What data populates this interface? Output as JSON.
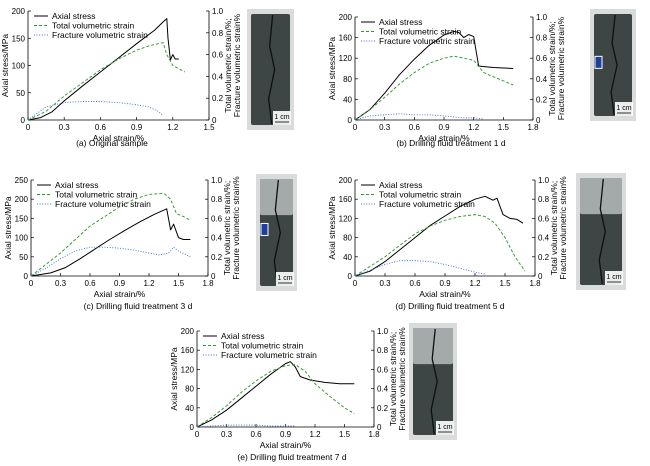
{
  "labels": {
    "y_left": "Axial stress/MPa",
    "y_right": "Total volumetric strain/%;",
    "y_right2": "Fracture volumetric strain%",
    "x": "Axial strain/%",
    "scale_bar": "1 cm"
  },
  "colors": {
    "axial": "#000000",
    "total": "#2e9b2e",
    "fracture": "#3f74d8",
    "rock": "#3d4645",
    "rock_light": "#a4aaa9",
    "crack": "#0c1010",
    "tag_blue": "#1f3fa0"
  },
  "chart_data": [
    {
      "type": "line",
      "caption": "(a) Original sample",
      "legend": [
        "Axial stress",
        "Total volumetric strain",
        "Fracture volumetric strain"
      ],
      "xlabel": "Axial strain/%",
      "ylabel": "Axial stress/MPa",
      "y2label": "Total volumetric strain/%; Fracture volumetric strain%",
      "xlim": [
        0,
        1.5
      ],
      "xticks": [
        0,
        0.3,
        0.6,
        0.9,
        1.2,
        1.5
      ],
      "ylim": [
        0,
        200
      ],
      "yticks": [
        0,
        50,
        100,
        150,
        200
      ],
      "y2lim": [
        0,
        1.0
      ],
      "y2ticks": [
        0,
        0.2,
        0.4,
        0.6,
        0.8,
        1.0
      ],
      "series": [
        {
          "name": "Axial stress",
          "axis": "left",
          "style": "solid",
          "x": [
            0,
            0.1,
            0.2,
            0.3,
            0.45,
            0.6,
            0.75,
            0.9,
            1.05,
            1.12,
            1.15,
            1.16,
            1.18,
            1.2,
            1.22,
            1.25
          ],
          "y": [
            0,
            4,
            15,
            35,
            62,
            88,
            114,
            140,
            165,
            180,
            186,
            150,
            110,
            120,
            112,
            112
          ]
        },
        {
          "name": "Total volumetric strain",
          "axis": "right",
          "style": "dash",
          "x": [
            0,
            0.15,
            0.3,
            0.45,
            0.6,
            0.75,
            0.9,
            1.0,
            1.08,
            1.12,
            1.15,
            1.2,
            1.3
          ],
          "y": [
            0,
            0.08,
            0.22,
            0.34,
            0.46,
            0.56,
            0.64,
            0.68,
            0.7,
            0.71,
            0.6,
            0.5,
            0.44
          ]
        },
        {
          "name": "Fracture volumetric strain",
          "axis": "right",
          "style": "dot",
          "x": [
            0,
            0.15,
            0.3,
            0.45,
            0.6,
            0.75,
            0.9,
            1.0,
            1.08,
            1.12
          ],
          "y": [
            0,
            0.12,
            0.16,
            0.17,
            0.17,
            0.16,
            0.14,
            0.12,
            0.08,
            0.04
          ]
        }
      ],
      "photo": {
        "top_band": false,
        "blue_tag": false
      }
    },
    {
      "type": "line",
      "caption": "(b) Drilling fluid treatment 1 d",
      "legend": [
        "Axial stress",
        "Total volumetric strain",
        "Fracture volumetric strain"
      ],
      "xlabel": "Axial strain/%",
      "ylabel": "Axial stress/MPa",
      "y2label": "Total volumetric strain/%; Fracture volumetric strain%",
      "xlim": [
        0,
        1.8
      ],
      "xticks": [
        0,
        0.3,
        0.6,
        0.9,
        1.2,
        1.5,
        1.8
      ],
      "ylim": [
        0,
        200
      ],
      "yticks": [
        0,
        40,
        80,
        120,
        160,
        200
      ],
      "y2lim": [
        0,
        1.0
      ],
      "y2ticks": [
        0,
        0.2,
        0.4,
        0.6,
        0.8,
        1.0
      ],
      "series": [
        {
          "name": "Axial stress",
          "axis": "left",
          "style": "solid",
          "x": [
            0,
            0.15,
            0.3,
            0.45,
            0.6,
            0.75,
            0.9,
            1.0,
            1.05,
            1.1,
            1.15,
            1.2,
            1.25,
            1.28,
            1.4,
            1.6
          ],
          "y": [
            0,
            20,
            52,
            88,
            118,
            145,
            165,
            172,
            170,
            160,
            166,
            162,
            105,
            104,
            102,
            100
          ]
        },
        {
          "name": "Total volumetric strain",
          "axis": "right",
          "style": "dash",
          "x": [
            0,
            0.15,
            0.3,
            0.45,
            0.6,
            0.75,
            0.9,
            1.0,
            1.1,
            1.2,
            1.3,
            1.45,
            1.6
          ],
          "y": [
            0,
            0.1,
            0.22,
            0.35,
            0.46,
            0.55,
            0.6,
            0.62,
            0.6,
            0.58,
            0.46,
            0.4,
            0.34
          ]
        },
        {
          "name": "Fracture volumetric strain",
          "axis": "right",
          "style": "dot",
          "x": [
            0,
            0.15,
            0.3,
            0.45,
            0.6,
            0.75,
            0.9,
            1.0,
            1.1,
            1.2,
            1.3
          ],
          "y": [
            0,
            0.04,
            0.05,
            0.06,
            0.05,
            0.05,
            0.04,
            0.03,
            0.02,
            0.02,
            0.01
          ]
        }
      ],
      "photo": {
        "top_band": false,
        "blue_tag": true
      }
    },
    {
      "type": "line",
      "caption": "(c) Drilling fluid treatment 3 d",
      "legend": [
        "Axial stress",
        "Total volumetric strain",
        "Fracture volumetric strain"
      ],
      "xlabel": "Axial strain/%",
      "ylabel": "Axial stress/MPa",
      "y2label": "Total volumetric strain/%; Fracture volumetric strain%",
      "xlim": [
        0,
        1.8
      ],
      "xticks": [
        0,
        0.3,
        0.6,
        0.9,
        1.2,
        1.5,
        1.8
      ],
      "ylim": [
        0,
        250
      ],
      "yticks": [
        0,
        50,
        100,
        150,
        200,
        250
      ],
      "y2lim": [
        0,
        1.0
      ],
      "y2ticks": [
        0,
        0.2,
        0.4,
        0.6,
        0.8,
        1.0
      ],
      "series": [
        {
          "name": "Axial stress",
          "axis": "left",
          "style": "solid",
          "x": [
            0,
            0.2,
            0.35,
            0.5,
            0.65,
            0.8,
            0.95,
            1.1,
            1.25,
            1.38,
            1.42,
            1.45,
            1.5,
            1.55,
            1.62
          ],
          "y": [
            0,
            8,
            22,
            45,
            70,
            95,
            118,
            140,
            160,
            175,
            120,
            135,
            100,
            95,
            95
          ]
        },
        {
          "name": "Total volumetric strain",
          "axis": "right",
          "style": "dash",
          "x": [
            0,
            0.15,
            0.3,
            0.45,
            0.6,
            0.75,
            0.9,
            1.05,
            1.2,
            1.35,
            1.42,
            1.48,
            1.55,
            1.62
          ],
          "y": [
            0,
            0.12,
            0.24,
            0.38,
            0.52,
            0.62,
            0.72,
            0.8,
            0.85,
            0.86,
            0.8,
            0.65,
            0.62,
            0.58
          ]
        },
        {
          "name": "Fracture volumetric strain",
          "axis": "right",
          "style": "dot",
          "x": [
            0,
            0.15,
            0.3,
            0.45,
            0.6,
            0.75,
            0.9,
            1.05,
            1.2,
            1.3,
            1.4,
            1.45,
            1.5,
            1.62
          ],
          "y": [
            0,
            0.08,
            0.18,
            0.26,
            0.3,
            0.3,
            0.29,
            0.27,
            0.24,
            0.22,
            0.24,
            0.3,
            0.26,
            0.2
          ]
        }
      ],
      "photo": {
        "top_band": true,
        "blue_tag": true
      }
    },
    {
      "type": "line",
      "caption": "(d) Drilling fluid treatment 5 d",
      "legend": [
        "Axial stress",
        "Total volumetric strain",
        "Fracture volumetric strain"
      ],
      "xlabel": "Axial strain/%",
      "ylabel": "Axial stress/MPa",
      "y2label": "Total volumetric strain/%; Fracture volumetric strain%",
      "xlim": [
        0,
        1.8
      ],
      "xticks": [
        0,
        0.3,
        0.6,
        0.9,
        1.2,
        1.5,
        1.8
      ],
      "ylim": [
        0,
        200
      ],
      "yticks": [
        0,
        40,
        80,
        120,
        160,
        200
      ],
      "y2lim": [
        0,
        1.0
      ],
      "y2ticks": [
        0,
        0.2,
        0.4,
        0.6,
        0.8,
        1.0
      ],
      "series": [
        {
          "name": "Axial stress",
          "axis": "left",
          "style": "solid",
          "x": [
            0,
            0.15,
            0.3,
            0.45,
            0.6,
            0.75,
            0.9,
            1.05,
            1.2,
            1.3,
            1.38,
            1.42,
            1.48,
            1.55,
            1.62,
            1.68
          ],
          "y": [
            0,
            10,
            30,
            55,
            80,
            105,
            125,
            145,
            160,
            166,
            158,
            162,
            128,
            120,
            118,
            110
          ]
        },
        {
          "name": "Total volumetric strain",
          "axis": "right",
          "style": "dash",
          "x": [
            0,
            0.15,
            0.3,
            0.45,
            0.6,
            0.75,
            0.9,
            1.05,
            1.2,
            1.3,
            1.4,
            1.5,
            1.6,
            1.7
          ],
          "y": [
            0,
            0.1,
            0.2,
            0.32,
            0.44,
            0.52,
            0.58,
            0.62,
            0.64,
            0.62,
            0.55,
            0.4,
            0.2,
            0.05
          ]
        },
        {
          "name": "Fracture volumetric strain",
          "axis": "right",
          "style": "dot",
          "x": [
            0,
            0.15,
            0.3,
            0.45,
            0.6,
            0.75,
            0.9,
            1.05,
            1.2,
            1.3
          ],
          "y": [
            0,
            0.06,
            0.12,
            0.16,
            0.16,
            0.15,
            0.12,
            0.08,
            0.04,
            0.02
          ]
        }
      ],
      "photo": {
        "top_band": true,
        "blue_tag": false
      }
    },
    {
      "type": "line",
      "caption": "(e) Drilling fluid treatment 7 d",
      "legend": [
        "Axial stress",
        "Total volumetric strain",
        "Fracture volumetric strain"
      ],
      "xlabel": "Axial strain/%",
      "ylabel": "Axial stress/MPa",
      "y2label": "Total volumetric strain/%; Fracture volumetric strain%",
      "xlim": [
        0,
        1.8
      ],
      "xticks": [
        0,
        0.3,
        0.6,
        0.9,
        1.2,
        1.5,
        1.8
      ],
      "ylim": [
        0,
        200
      ],
      "yticks": [
        0,
        40,
        80,
        120,
        160,
        200
      ],
      "y2lim": [
        0,
        1.0
      ],
      "y2ticks": [
        0,
        0.2,
        0.4,
        0.6,
        0.8,
        1.0
      ],
      "series": [
        {
          "name": "Axial stress",
          "axis": "left",
          "style": "solid",
          "x": [
            0,
            0.15,
            0.3,
            0.45,
            0.6,
            0.75,
            0.9,
            0.95,
            1.0,
            1.05,
            1.15,
            1.3,
            1.45,
            1.6
          ],
          "y": [
            0,
            15,
            35,
            60,
            85,
            110,
            132,
            136,
            125,
            105,
            98,
            93,
            90,
            90
          ]
        },
        {
          "name": "Total volumetric strain",
          "axis": "right",
          "style": "dash",
          "x": [
            0,
            0.15,
            0.3,
            0.45,
            0.6,
            0.75,
            0.9,
            1.0,
            1.1,
            1.2,
            1.35,
            1.5,
            1.6
          ],
          "y": [
            0,
            0.1,
            0.22,
            0.36,
            0.48,
            0.58,
            0.64,
            0.65,
            0.58,
            0.45,
            0.32,
            0.2,
            0.14
          ]
        },
        {
          "name": "Fracture volumetric strain",
          "axis": "right",
          "style": "dot",
          "x": [
            0,
            0.15,
            0.3,
            0.45,
            0.6,
            0.75,
            0.9,
            1.0
          ],
          "y": [
            0,
            0.01,
            0.02,
            0.02,
            0.02,
            0.01,
            0.01,
            0.01
          ]
        }
      ],
      "photo": {
        "top_band": true,
        "blue_tag": false
      }
    }
  ]
}
